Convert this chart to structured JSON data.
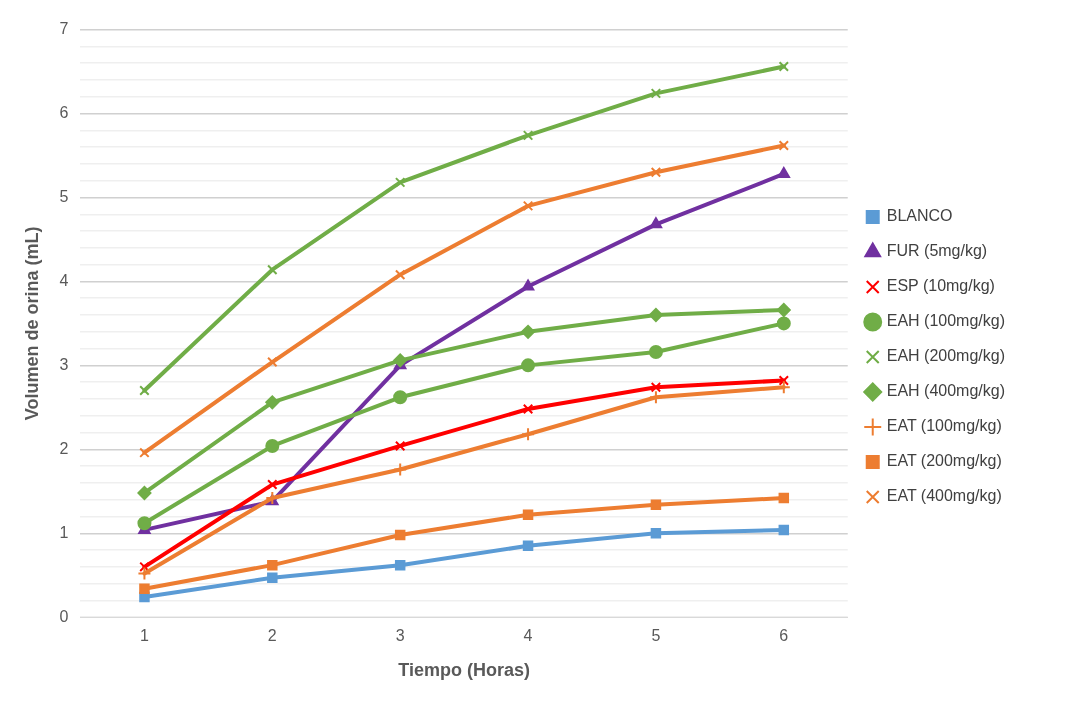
{
  "chart_data": {
    "type": "line",
    "xlabel": "Tiempo (Horas)",
    "ylabel": "Volumen de orina (mL)",
    "categories": [
      "1",
      "2",
      "3",
      "4",
      "5",
      "6"
    ],
    "ylim": [
      0,
      7
    ],
    "yticks": [
      0,
      {
        "value": 0.2,
        "label": null
      },
      {
        "value": 0.4,
        "label": null
      },
      {
        "value": 0.6,
        "label": null
      },
      {
        "value": 0.8,
        "label": null
      },
      1,
      {
        "value": 1.2,
        "label": null
      },
      {
        "value": 1.4,
        "label": null
      },
      {
        "value": 1.6,
        "label": null
      },
      {
        "value": 1.8,
        "label": null
      },
      2,
      {
        "value": 2.2,
        "label": null
      },
      {
        "value": 2.4,
        "label": null
      },
      {
        "value": 2.6,
        "label": null
      },
      {
        "value": 2.8,
        "label": null
      },
      3,
      {
        "value": 3.2,
        "label": null
      },
      {
        "value": 3.4,
        "label": null
      },
      {
        "value": 3.6,
        "label": null
      },
      {
        "value": 3.8,
        "label": null
      },
      4,
      {
        "value": 4.2,
        "label": null
      },
      {
        "value": 4.4,
        "label": null
      },
      {
        "value": 4.6,
        "label": null
      },
      {
        "value": 4.8,
        "label": null
      },
      5,
      {
        "value": 5.2,
        "label": null
      },
      {
        "value": 5.4,
        "label": null
      },
      {
        "value": 5.6,
        "label": null
      },
      {
        "value": 5.8,
        "label": null
      },
      6,
      {
        "value": 6.2,
        "label": null
      },
      {
        "value": 6.4,
        "label": null
      },
      {
        "value": 6.6,
        "label": null
      },
      {
        "value": 6.8,
        "label": null
      },
      7
    ],
    "grid": "y",
    "legend": "right",
    "line_style": "solid",
    "series": [
      {
        "name": "BLANCO",
        "color": "#5b9bd5",
        "marker": "square",
        "values": [
          0.24,
          0.47,
          0.62,
          0.85,
          1.0,
          1.04
        ]
      },
      {
        "name": "FUR (5mg/kg)",
        "color": "#7030a0",
        "marker": "triangle",
        "values": [
          1.04,
          1.38,
          3.0,
          3.94,
          4.68,
          5.28
        ]
      },
      {
        "name": "ESP (10mg/kg)",
        "color": "#ff0000",
        "marker": "cross",
        "values": [
          0.6,
          1.58,
          2.04,
          2.48,
          2.74,
          2.82
        ]
      },
      {
        "name": "EAH (100mg/kg)",
        "color": "#70ad47",
        "marker": "circle",
        "values": [
          1.12,
          2.04,
          2.62,
          3.0,
          3.16,
          3.5
        ]
      },
      {
        "name": "EAH (200mg/kg)",
        "color": "#70ad47",
        "marker": "cross",
        "values": [
          2.7,
          4.14,
          5.18,
          5.74,
          6.24,
          6.56
        ]
      },
      {
        "name": "EAH (400mg/kg)",
        "color": "#70ad47",
        "marker": "diamond",
        "values": [
          1.48,
          2.56,
          3.06,
          3.4,
          3.6,
          3.66
        ]
      },
      {
        "name": "EAT (100mg/kg)",
        "color": "#ed7d31",
        "marker": "plus",
        "values": [
          0.52,
          1.42,
          1.76,
          2.18,
          2.62,
          2.74
        ]
      },
      {
        "name": "EAT (200mg/kg)",
        "color": "#ed7d31",
        "marker": "square",
        "values": [
          0.34,
          0.62,
          0.98,
          1.22,
          1.34,
          1.42
        ]
      },
      {
        "name": "EAT (400mg/kg)",
        "color": "#ed7d31",
        "marker": "cross",
        "values": [
          1.96,
          3.04,
          4.08,
          4.9,
          5.3,
          5.62
        ]
      }
    ]
  }
}
